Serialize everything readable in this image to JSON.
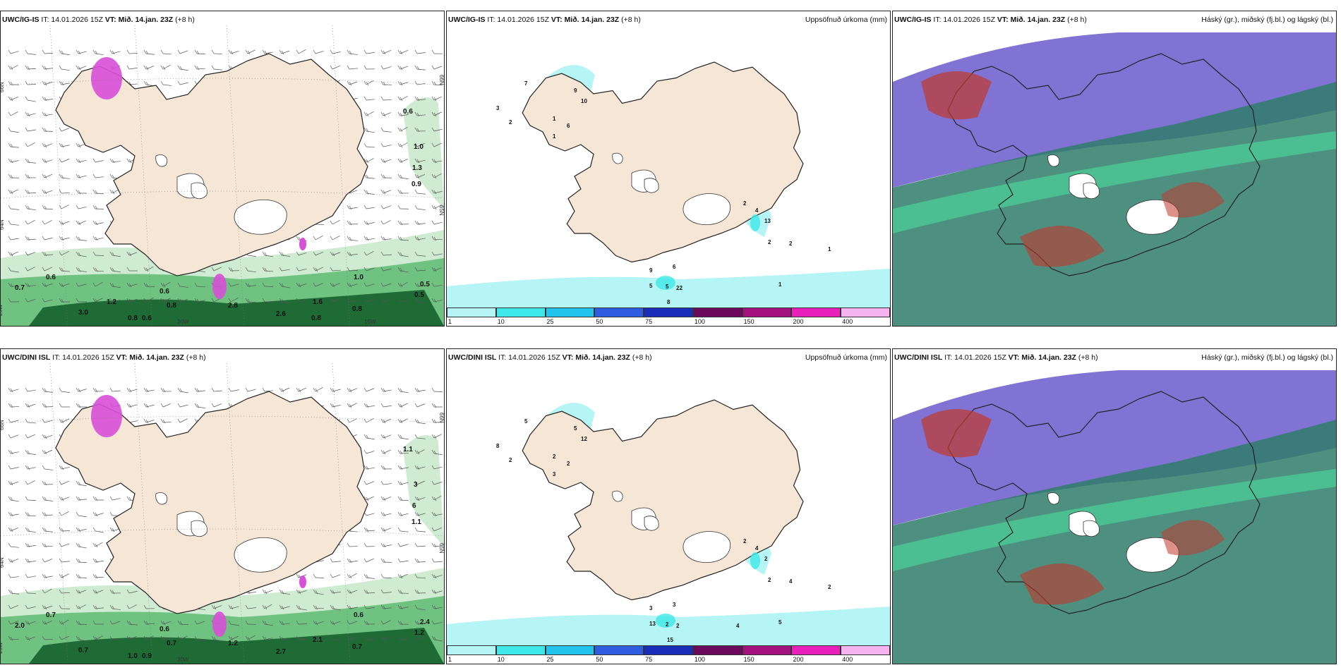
{
  "colors": {
    "land": "#f6e6d6",
    "water": "#ffffff",
    "precip_light": "#b6f5f5",
    "precip_cyan": "#3ee8e8",
    "snow_pink": "#d84fd8",
    "green_light": "#cfecd2",
    "green_mid": "#6fc280",
    "green_dark": "#1f6b35",
    "cloud_high": "#6a5acd",
    "cloud_mid": "#c0392b",
    "cloud_low": "#2f7d6a"
  },
  "panels": [
    {
      "model": "UWC/IG-IS",
      "it": "IT: 14.01.2026 15Z",
      "vt_label": "VT:",
      "vt": "Mið. 14.jan. 23Z",
      "lead": "(+8 h)",
      "kind": "wind",
      "right": "",
      "axes": {
        "lat_left": [
          "66N",
          "64N"
        ],
        "lat_right": [
          "66N",
          "65N"
        ],
        "lon_bottom": [
          "20W",
          "15W"
        ],
        "lon_left_bottom": "25W"
      },
      "labels": [
        "0.6",
        "1.0",
        "1.3",
        "0.9",
        "0.7",
        "0.6",
        "1.0",
        "0.8",
        "0.5",
        "0.5",
        "3.0",
        "0.8",
        "0.6",
        "0.8",
        "0.6",
        "2.8",
        "2.6",
        "1.6",
        "0.8",
        "1.2"
      ]
    },
    {
      "model": "UWC/IG-IS",
      "it": "IT: 14.01.2026 15Z",
      "vt_label": "VT:",
      "vt": "Mið. 14.jan. 23Z",
      "lead": "(+8 h)",
      "kind": "precip",
      "right": "Uppsöfnuð úrkoma (mm)",
      "labels": [
        "7",
        "9",
        "10",
        "3",
        "2",
        "1",
        "6",
        "1",
        "6",
        "9",
        "5",
        "22",
        "5",
        "8",
        "2",
        "4",
        "13",
        "2",
        "2",
        "1",
        "1"
      ],
      "legend": [
        "1",
        "10",
        "25",
        "50",
        "75",
        "100",
        "150",
        "200",
        "400"
      ]
    },
    {
      "model": "UWC/IG-IS",
      "it": "IT: 14.01.2026 15Z",
      "vt_label": "VT:",
      "vt": "Mið. 14.jan. 23Z",
      "lead": "(+8 h)",
      "kind": "cloud",
      "right": "Háský (gr.), miðský (fj.bl.) og lágský (bl.)"
    },
    {
      "model": "UWC/DINI ISL",
      "it": "IT: 14.01.2026 15Z",
      "vt_label": "VT:",
      "vt": "Mið. 14.jan. 23Z",
      "lead": "(+8 h)",
      "kind": "wind",
      "right": "",
      "axes": {
        "lat_left": [
          "66N",
          "64N"
        ],
        "lat_right": [
          "66N",
          "65N"
        ],
        "lon_bottom": [
          "20W"
        ],
        "lon_left_bottom": "25W"
      },
      "labels": [
        "1.1",
        "3",
        "6",
        "1.1",
        "2.0",
        "0.7",
        "0.6",
        "0.7",
        "2.4",
        "1.2",
        "0.7",
        "1.0",
        "0.9",
        "0.7",
        "0.6",
        "1.2",
        "2.7",
        "2.1"
      ]
    },
    {
      "model": "UWC/DINI ISL",
      "it": "IT: 14.01.2026 15Z",
      "vt_label": "VT:",
      "vt": "Mið. 14.jan. 23Z",
      "lead": "(+8 h)",
      "kind": "precip",
      "right": "Uppsöfnuð úrkoma (mm)",
      "labels": [
        "5",
        "5",
        "12",
        "8",
        "2",
        "2",
        "2",
        "3",
        "3",
        "3",
        "2",
        "2",
        "13",
        "15",
        "2",
        "4",
        "2",
        "2",
        "4",
        "2",
        "5",
        "4"
      ],
      "legend": [
        "1",
        "10",
        "25",
        "50",
        "75",
        "100",
        "150",
        "200",
        "400"
      ]
    },
    {
      "model": "UWC/DINI ISL",
      "it": "IT: 14.01.2026 15Z",
      "vt_label": "VT:",
      "vt": "Mið. 14.jan. 23Z",
      "lead": "(+8 h)",
      "kind": "cloud",
      "right": "Háský (gr.), miðský (fj.bl.) og lágský (bl.)"
    }
  ]
}
